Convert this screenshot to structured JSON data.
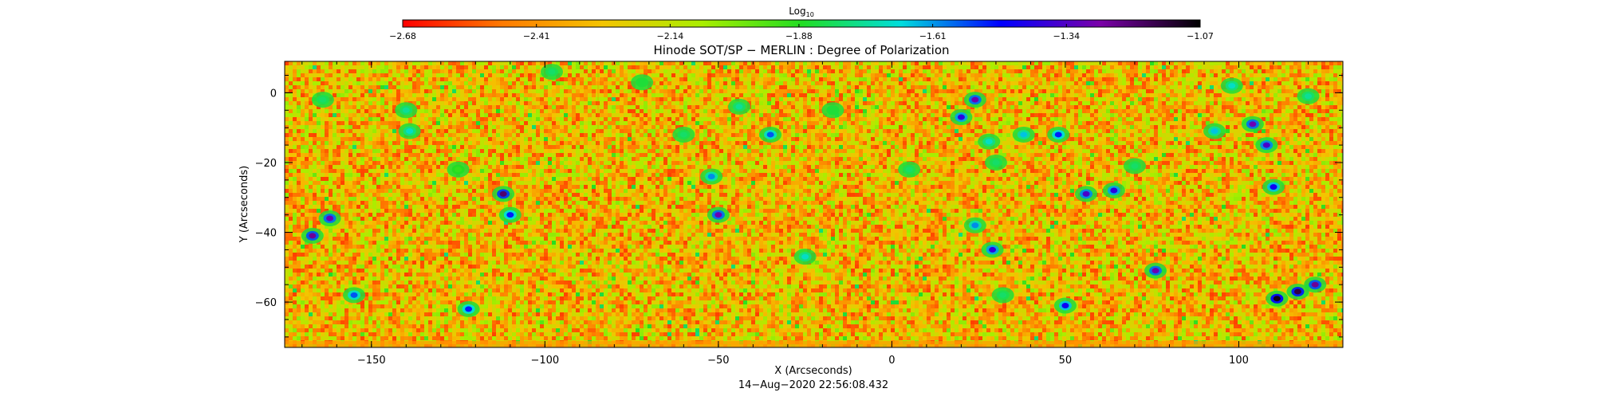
{
  "chart_data": {
    "type": "heatmap",
    "title": "Hinode SOT/SP − MERLIN : Degree of Polarization",
    "xlabel": "X (Arcseconds)",
    "ylabel": "Y (Arcseconds)",
    "timestamp": "14−Aug−2020 22:56:08.432",
    "xlim": [
      -175,
      130
    ],
    "ylim": [
      -73,
      9
    ],
    "x_ticks": [
      -150,
      -100,
      -50,
      0,
      50,
      100
    ],
    "x_tick_labels": [
      "−150",
      "−100",
      "−50",
      "0",
      "50",
      "100"
    ],
    "y_ticks": [
      0,
      -20,
      -40,
      -60
    ],
    "y_tick_labels": [
      "0",
      "−20",
      "−40",
      "−60"
    ],
    "grid": false,
    "colorbar": {
      "label_base": "Log",
      "label_sub": "10",
      "range": [
        -2.68,
        -1.07
      ],
      "ticks": [
        -2.68,
        -2.41,
        -2.14,
        -1.88,
        -1.61,
        -1.34,
        -1.07
      ],
      "tick_labels": [
        "−2.68",
        "−2.41",
        "−2.14",
        "−1.88",
        "−1.61",
        "−1.34",
        "−1.07"
      ],
      "colors": [
        "#ff0000",
        "#ff7a00",
        "#f4c400",
        "#aaee00",
        "#22dd22",
        "#00dddd",
        "#0000ff",
        "#7a00a8",
        "#000000"
      ]
    },
    "background_level": -2.3,
    "features": [
      {
        "x": -164,
        "y": -2,
        "level": -1.8
      },
      {
        "x": -162,
        "y": -36,
        "level": -1.3
      },
      {
        "x": -167,
        "y": -41,
        "level": -1.25
      },
      {
        "x": -155,
        "y": -58,
        "level": -1.55
      },
      {
        "x": -140,
        "y": -5,
        "level": -1.75
      },
      {
        "x": -139,
        "y": -11,
        "level": -1.7
      },
      {
        "x": -125,
        "y": -22,
        "level": -1.9
      },
      {
        "x": -112,
        "y": -29,
        "level": -1.2
      },
      {
        "x": -110,
        "y": -35,
        "level": -1.5
      },
      {
        "x": -122,
        "y": -62,
        "level": -1.5
      },
      {
        "x": -98,
        "y": 6,
        "level": -1.8
      },
      {
        "x": -72,
        "y": 3,
        "level": -1.85
      },
      {
        "x": -60,
        "y": -12,
        "level": -1.8
      },
      {
        "x": -52,
        "y": -24,
        "level": -1.6
      },
      {
        "x": -50,
        "y": -35,
        "level": -1.3
      },
      {
        "x": -44,
        "y": -4,
        "level": -1.75
      },
      {
        "x": -35,
        "y": -12,
        "level": -1.55
      },
      {
        "x": -25,
        "y": -47,
        "level": -1.7
      },
      {
        "x": -17,
        "y": -5,
        "level": -1.85
      },
      {
        "x": 5,
        "y": -22,
        "level": -1.8
      },
      {
        "x": 20,
        "y": -7,
        "level": -1.4
      },
      {
        "x": 24,
        "y": -2,
        "level": -1.3
      },
      {
        "x": 28,
        "y": -14,
        "level": -1.7
      },
      {
        "x": 30,
        "y": -20,
        "level": -1.8
      },
      {
        "x": 24,
        "y": -38,
        "level": -1.6
      },
      {
        "x": 29,
        "y": -45,
        "level": -1.4
      },
      {
        "x": 38,
        "y": -12,
        "level": -1.65
      },
      {
        "x": 48,
        "y": -12,
        "level": -1.5
      },
      {
        "x": 56,
        "y": -29,
        "level": -1.35
      },
      {
        "x": 64,
        "y": -28,
        "level": -1.4
      },
      {
        "x": 70,
        "y": -21,
        "level": -1.8
      },
      {
        "x": 76,
        "y": -51,
        "level": -1.3
      },
      {
        "x": 50,
        "y": -61,
        "level": -1.45
      },
      {
        "x": 32,
        "y": -58,
        "level": -1.8
      },
      {
        "x": 93,
        "y": -11,
        "level": -1.65
      },
      {
        "x": 104,
        "y": -9,
        "level": -1.3
      },
      {
        "x": 108,
        "y": -15,
        "level": -1.35
      },
      {
        "x": 110,
        "y": -27,
        "level": -1.45
      },
      {
        "x": 98,
        "y": 2,
        "level": -1.7
      },
      {
        "x": 111,
        "y": -59,
        "level": -1.1
      },
      {
        "x": 117,
        "y": -57,
        "level": -1.15
      },
      {
        "x": 122,
        "y": -55,
        "level": -1.25
      },
      {
        "x": 120,
        "y": -1,
        "level": -1.75
      }
    ]
  }
}
